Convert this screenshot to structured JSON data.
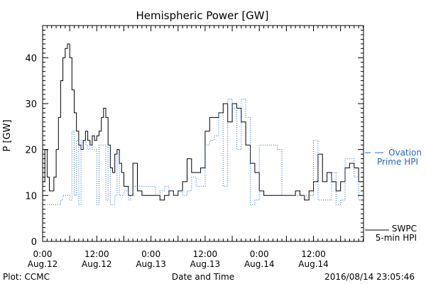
{
  "chart_data": {
    "type": "line",
    "title": "Hemispheric Power [GW]",
    "xlabel": "Date and Time",
    "ylabel": "P [GW]",
    "ylim": [
      0,
      47
    ],
    "xlim": [
      "2016-08-12T00:00",
      "2016-08-14T23:05"
    ],
    "x_ticks": [
      {
        "t": "2016-08-12T00:00",
        "l1": "0:00",
        "l2": "Aug.12"
      },
      {
        "t": "2016-08-12T12:00",
        "l1": "12:00",
        "l2": "Aug.12"
      },
      {
        "t": "2016-08-13T00:00",
        "l1": "0:00",
        "l2": "Aug.13"
      },
      {
        "t": "2016-08-13T12:00",
        "l1": "12:00",
        "l2": "Aug.13"
      },
      {
        "t": "2016-08-14T00:00",
        "l1": "0:00",
        "l2": "Aug.14"
      },
      {
        "t": "2016-08-14T12:00",
        "l1": "12:00",
        "l2": "Aug.14"
      }
    ],
    "y_ticks": [
      0,
      10,
      20,
      30,
      40
    ],
    "grid": false,
    "legend_position": "right",
    "series": [
      {
        "name": "SWPC 5-min HPI",
        "color": "#000000",
        "style": "solid",
        "x": [
          "2016-08-12T00:00",
          "2016-08-12T00:30",
          "2016-08-12T01:00",
          "2016-08-12T01:30",
          "2016-08-12T02:00",
          "2016-08-12T02:30",
          "2016-08-12T03:00",
          "2016-08-12T03:30",
          "2016-08-12T04:00",
          "2016-08-12T04:30",
          "2016-08-12T05:00",
          "2016-08-12T05:30",
          "2016-08-12T06:00",
          "2016-08-12T06:30",
          "2016-08-12T07:00",
          "2016-08-12T07:30",
          "2016-08-12T08:00",
          "2016-08-12T08:30",
          "2016-08-12T09:00",
          "2016-08-12T09:30",
          "2016-08-12T10:00",
          "2016-08-12T10:30",
          "2016-08-12T11:00",
          "2016-08-12T11:30",
          "2016-08-12T12:00",
          "2016-08-12T12:30",
          "2016-08-12T13:00",
          "2016-08-12T13:30",
          "2016-08-12T14:00",
          "2016-08-12T14:30",
          "2016-08-12T15:00",
          "2016-08-12T15:30",
          "2016-08-12T16:00",
          "2016-08-12T16:30",
          "2016-08-12T17:00",
          "2016-08-12T17:30",
          "2016-08-12T18:00",
          "2016-08-12T18:30",
          "2016-08-12T19:00",
          "2016-08-12T20:00",
          "2016-08-12T21:00",
          "2016-08-12T22:00",
          "2016-08-12T23:00",
          "2016-08-13T00:00",
          "2016-08-13T01:00",
          "2016-08-13T02:00",
          "2016-08-13T03:00",
          "2016-08-13T04:00",
          "2016-08-13T05:00",
          "2016-08-13T06:00",
          "2016-08-13T07:00",
          "2016-08-13T08:00",
          "2016-08-13T09:00",
          "2016-08-13T10:00",
          "2016-08-13T11:00",
          "2016-08-13T12:00",
          "2016-08-13T13:00",
          "2016-08-13T14:00",
          "2016-08-13T15:00",
          "2016-08-13T16:00",
          "2016-08-13T17:00",
          "2016-08-13T18:00",
          "2016-08-13T19:00",
          "2016-08-13T20:00",
          "2016-08-13T21:00",
          "2016-08-13T22:00",
          "2016-08-13T23:00",
          "2016-08-14T00:00",
          "2016-08-14T01:00",
          "2016-08-14T02:00",
          "2016-08-14T03:00",
          "2016-08-14T04:00",
          "2016-08-14T05:00",
          "2016-08-14T06:00",
          "2016-08-14T07:00",
          "2016-08-14T08:00",
          "2016-08-14T09:00",
          "2016-08-14T10:00",
          "2016-08-14T11:00",
          "2016-08-14T12:00",
          "2016-08-14T13:00",
          "2016-08-14T14:00",
          "2016-08-14T15:00",
          "2016-08-14T16:00",
          "2016-08-14T17:00",
          "2016-08-14T18:00",
          "2016-08-14T19:00",
          "2016-08-14T20:00",
          "2016-08-14T21:00",
          "2016-08-14T22:00",
          "2016-08-14T23:05"
        ],
        "y": [
          13,
          20,
          14,
          11,
          11,
          14,
          20,
          27,
          35,
          40,
          42,
          43,
          40,
          33,
          28,
          24,
          21,
          20,
          22,
          24,
          22,
          21,
          23,
          22,
          23,
          24,
          27,
          29,
          27,
          21,
          16,
          15,
          19,
          20,
          17,
          15,
          12,
          12,
          10,
          17,
          11,
          10,
          10,
          10,
          10,
          9,
          10,
          11,
          10,
          11,
          13,
          18,
          15,
          15,
          16,
          24,
          27,
          27,
          28,
          30,
          26,
          30,
          29,
          26,
          21,
          17,
          15,
          11,
          10,
          10,
          10,
          10,
          10,
          10,
          10,
          11,
          10,
          9,
          11,
          13,
          19,
          13,
          15,
          13,
          11,
          13,
          16,
          17,
          16,
          13,
          12
        ]
      },
      {
        "name": "Ovation Prime HPI",
        "color": "#2266cc",
        "style": "dotted",
        "x": [
          "2016-08-12T00:00",
          "2016-08-12T02:00",
          "2016-08-12T02:30",
          "2016-08-12T03:00",
          "2016-08-12T04:00",
          "2016-08-12T04:30",
          "2016-08-12T05:00",
          "2016-08-12T06:00",
          "2016-08-12T06:30",
          "2016-08-12T07:00",
          "2016-08-12T07:30",
          "2016-08-12T08:00",
          "2016-08-12T08:30",
          "2016-08-12T09:00",
          "2016-08-12T09:30",
          "2016-08-12T10:00",
          "2016-08-12T10:30",
          "2016-08-12T11:00",
          "2016-08-12T11:30",
          "2016-08-12T12:00",
          "2016-08-12T12:30",
          "2016-08-12T13:00",
          "2016-08-12T13:30",
          "2016-08-12T14:00",
          "2016-08-12T14:30",
          "2016-08-12T15:00",
          "2016-08-12T16:00",
          "2016-08-12T16:30",
          "2016-08-12T17:00",
          "2016-08-12T17:30",
          "2016-08-12T18:00",
          "2016-08-12T19:00",
          "2016-08-12T19:30",
          "2016-08-12T20:00",
          "2016-08-12T21:00",
          "2016-08-12T22:00",
          "2016-08-12T23:00",
          "2016-08-13T00:00",
          "2016-08-13T01:00",
          "2016-08-13T02:00",
          "2016-08-13T03:00",
          "2016-08-13T04:00",
          "2016-08-13T05:00",
          "2016-08-13T06:00",
          "2016-08-13T07:00",
          "2016-08-13T08:00",
          "2016-08-13T09:00",
          "2016-08-13T10:00",
          "2016-08-13T11:00",
          "2016-08-13T12:00",
          "2016-08-13T13:00",
          "2016-08-13T14:00",
          "2016-08-13T15:00",
          "2016-08-13T16:00",
          "2016-08-13T17:00",
          "2016-08-13T18:00",
          "2016-08-13T19:00",
          "2016-08-13T20:00",
          "2016-08-13T21:00",
          "2016-08-13T22:00",
          "2016-08-13T23:00",
          "2016-08-14T00:00",
          "2016-08-14T01:00",
          "2016-08-14T02:00",
          "2016-08-14T03:00",
          "2016-08-14T04:00",
          "2016-08-14T05:00",
          "2016-08-14T06:00",
          "2016-08-14T07:00",
          "2016-08-14T08:00",
          "2016-08-14T09:00",
          "2016-08-14T10:00",
          "2016-08-14T11:00",
          "2016-08-14T12:00",
          "2016-08-14T13:00",
          "2016-08-14T14:00",
          "2016-08-14T15:00",
          "2016-08-14T16:00",
          "2016-08-14T17:00",
          "2016-08-14T18:00",
          "2016-08-14T19:00",
          "2016-08-14T20:00",
          "2016-08-14T21:00",
          "2016-08-14T22:00",
          "2016-08-14T23:05"
        ],
        "y": [
          8,
          8,
          8,
          8,
          9,
          10,
          10,
          9,
          24,
          10,
          22,
          8,
          22,
          22,
          21,
          20,
          21,
          20,
          20,
          8,
          21,
          21,
          21,
          9,
          21,
          8,
          10,
          19,
          10,
          10,
          11,
          9,
          10,
          12,
          12,
          12,
          12,
          12,
          10,
          11,
          12,
          11,
          10,
          11,
          10,
          11,
          14,
          12,
          12,
          21,
          22,
          23,
          28,
          12,
          31,
          29,
          20,
          31,
          27,
          8,
          9,
          21,
          21,
          21,
          21,
          20,
          10,
          10,
          10,
          10,
          10,
          10,
          10,
          22,
          9,
          9,
          9,
          15,
          8,
          9,
          18,
          18,
          14,
          9,
          8
        ]
      }
    ],
    "annotations": {
      "bottom_left": "Plot: CCMC",
      "bottom_right": "2016/08/14 23:05:46"
    },
    "legend": {
      "ovation": [
        "Ovation",
        "Prime HPI"
      ],
      "swpc": [
        "SWPC",
        "5-min HPI"
      ]
    }
  }
}
